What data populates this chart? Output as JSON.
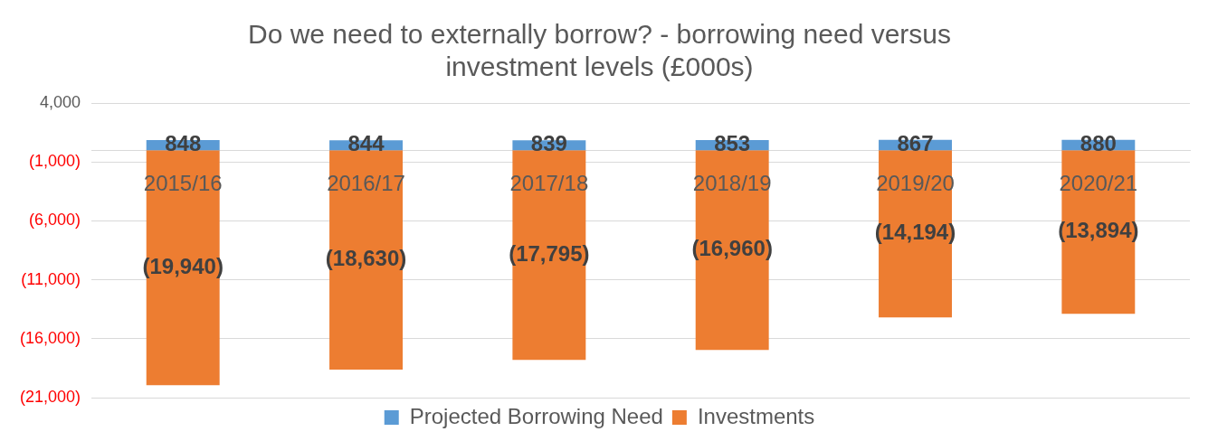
{
  "chart_data": {
    "type": "bar",
    "title": "Do we need to externally borrow? - borrowing need versus investment levels (£000s)",
    "categories": [
      "2015/16",
      "2016/17",
      "2017/18",
      "2018/19",
      "2019/20",
      "2020/21"
    ],
    "series": [
      {
        "name": "Projected Borrowing Need",
        "color": "#5b9bd5",
        "values": [
          848,
          844,
          839,
          853,
          867,
          880
        ],
        "value_labels": [
          "848",
          "844",
          "839",
          "853",
          "867",
          "880"
        ]
      },
      {
        "name": "Investments",
        "color": "#ed7d31",
        "values": [
          -19940,
          -18630,
          -17795,
          -16960,
          -14194,
          -13894
        ],
        "value_labels": [
          "(19,940)",
          "(18,630)",
          "(17,795)",
          "(16,960)",
          "(14,194)",
          "(13,894)"
        ]
      }
    ],
    "stacked": true,
    "grid": "y",
    "legend": "bottom",
    "ylim": [
      -21000,
      4000
    ],
    "yticks": [
      {
        "value": 4000,
        "label": "4,000"
      },
      {
        "value": -1000,
        "label": "(1,000)"
      },
      {
        "value": -6000,
        "label": "(6,000)"
      },
      {
        "value": -11000,
        "label": "(11,000)"
      },
      {
        "value": -16000,
        "label": "(16,000)"
      },
      {
        "value": -21000,
        "label": "(21,000)"
      }
    ]
  }
}
